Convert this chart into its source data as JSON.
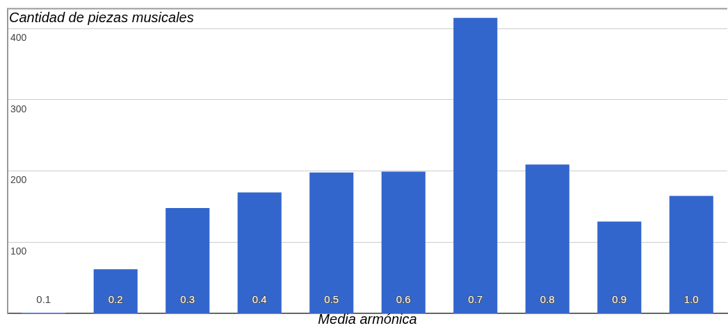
{
  "chart_data": {
    "type": "bar",
    "title": "Cantidad de piezas musicales",
    "xlabel": "Media armónica",
    "categories": [
      "0.1",
      "0.2",
      "0.3",
      "0.4",
      "0.5",
      "0.6",
      "0.7",
      "0.8",
      "0.9",
      "1.0"
    ],
    "values": [
      1,
      62,
      148,
      170,
      198,
      199,
      415,
      209,
      129,
      165
    ],
    "color": "#3366cc",
    "ylim": [
      0,
      428
    ],
    "yticks": [
      100,
      200,
      300,
      400
    ],
    "grid": "y",
    "legend": false
  }
}
